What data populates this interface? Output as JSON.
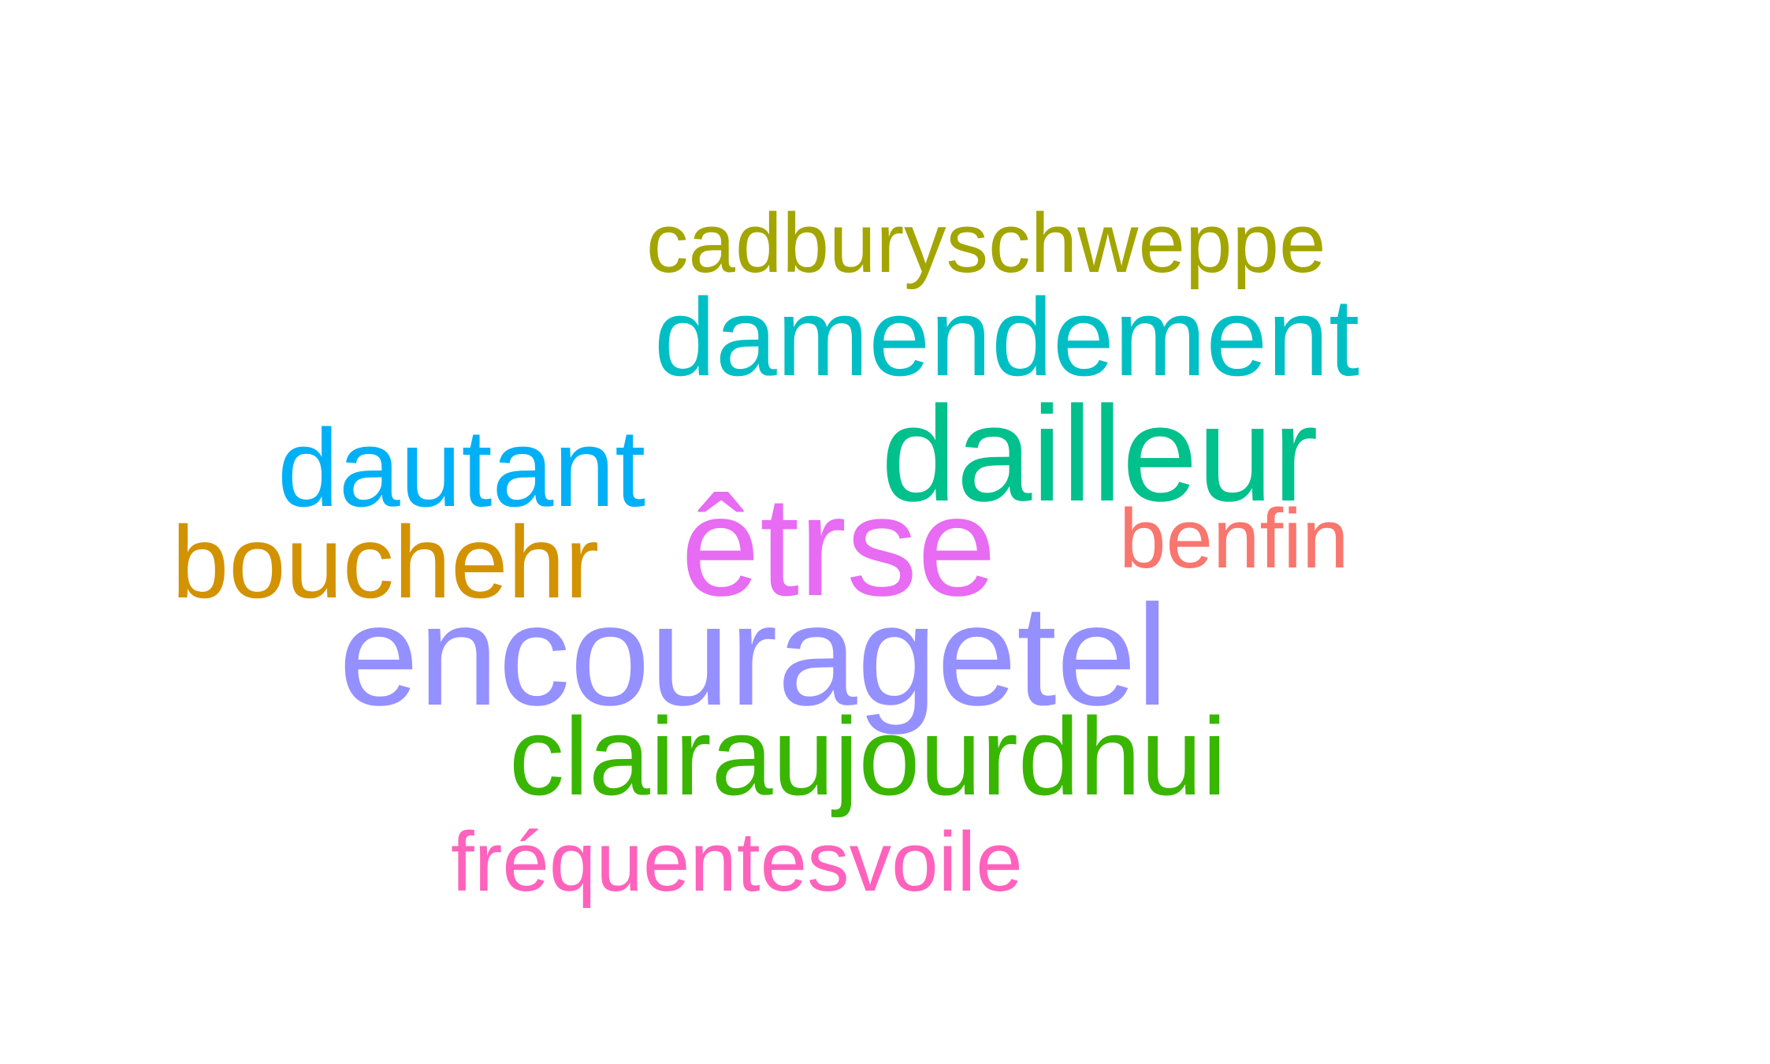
{
  "words": [
    {
      "text": "cadburyschweppe",
      "color": "#a3a500"
    },
    {
      "text": "damendement",
      "color": "#00bfc4"
    },
    {
      "text": "dailleur",
      "color": "#00c08b"
    },
    {
      "text": "dautant",
      "color": "#00b0f6"
    },
    {
      "text": "êtrse",
      "color": "#e76bf3"
    },
    {
      "text": "benfin",
      "color": "#f8766d"
    },
    {
      "text": "bouchehr",
      "color": "#d39200"
    },
    {
      "text": "encouragetel",
      "color": "#9590ff"
    },
    {
      "text": "clairaujourdhui",
      "color": "#39b600"
    },
    {
      "text": "fréquentesvoile",
      "color": "#ff62bc"
    }
  ]
}
